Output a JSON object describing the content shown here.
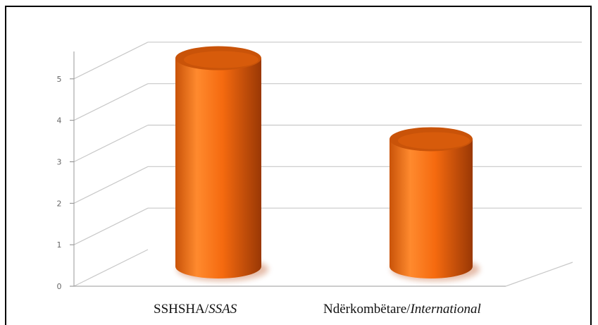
{
  "chart_data": {
    "type": "bar",
    "style": "3d-cylinder",
    "categories": [
      {
        "main": "SSHSHA/",
        "italic": "SSAS"
      },
      {
        "main": "Ndërkombëtare/",
        "italic": "International"
      }
    ],
    "values": [
      5.4,
      3.3
    ],
    "yticks": [
      "0",
      "1",
      "2",
      "3",
      "4",
      "5"
    ],
    "ylim": [
      0,
      6
    ],
    "grid": true,
    "bar_color": "#f56a0f",
    "bar_shadow": "#b84407",
    "bar_top_color": "#c95309",
    "grid_color": "#c8c8c8"
  }
}
